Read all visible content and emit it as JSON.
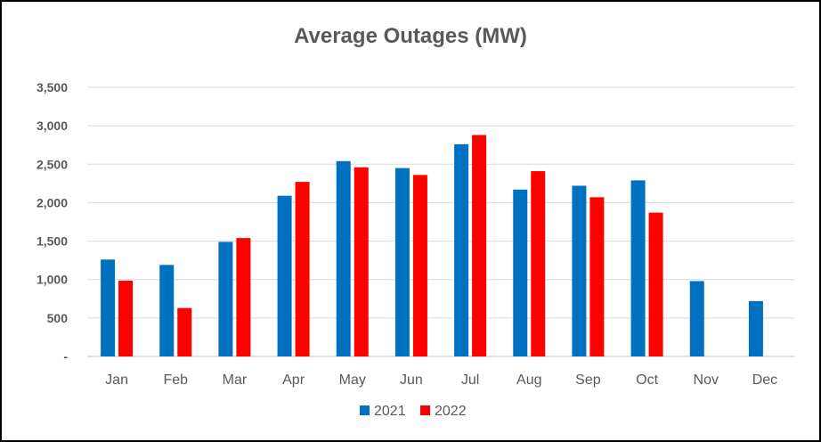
{
  "chart_data": {
    "type": "bar",
    "title": "Average Outages (MW)",
    "xlabel": "",
    "ylabel": "",
    "categories": [
      "Jan",
      "Feb",
      "Mar",
      "Apr",
      "May",
      "Jun",
      "Jul",
      "Aug",
      "Sep",
      "Oct",
      "Nov",
      "Dec"
    ],
    "series": [
      {
        "name": "2021",
        "color": "#0070C0",
        "values": [
          1260,
          1190,
          1490,
          2090,
          2540,
          2450,
          2760,
          2170,
          2220,
          2290,
          980,
          720
        ]
      },
      {
        "name": "2022",
        "color": "#FF0000",
        "values": [
          985,
          630,
          1540,
          2270,
          2460,
          2360,
          2880,
          2410,
          2070,
          1870,
          null,
          null
        ]
      }
    ],
    "ylim": [
      0,
      3500
    ],
    "yticks": [
      {
        "value": 0,
        "label": "-"
      },
      {
        "value": 500,
        "label": "500"
      },
      {
        "value": 1000,
        "label": "1,000"
      },
      {
        "value": 1500,
        "label": "1,500"
      },
      {
        "value": 2000,
        "label": "2,000"
      },
      {
        "value": 2500,
        "label": "2,500"
      },
      {
        "value": 3000,
        "label": "3,000"
      },
      {
        "value": 3500,
        "label": "3,500"
      }
    ],
    "grid": true,
    "legend_position": "bottom"
  }
}
